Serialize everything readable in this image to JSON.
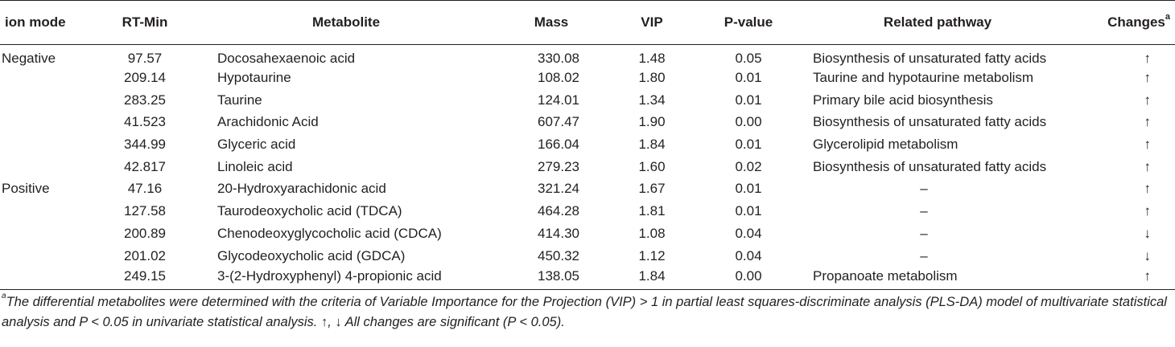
{
  "table": {
    "headers": {
      "ion_mode": "ion mode",
      "rt_min": "RT-Min",
      "metabolite": "Metabolite",
      "mass": "Mass",
      "vip": "VIP",
      "p_value": "P-value",
      "related_pathway": "Related pathway",
      "changes": "Changes",
      "changes_sup": "a"
    },
    "rows": [
      {
        "ion_mode": "Negative",
        "rt_min": "97.57",
        "metabolite": "Docosahexaenoic acid",
        "mass": "330.08",
        "vip": "1.48",
        "p_value": "0.05",
        "pathway": "Biosynthesis of unsaturated fatty acids",
        "change": "↑"
      },
      {
        "ion_mode": "",
        "rt_min": "209.14",
        "metabolite": "Hypotaurine",
        "mass": "108.02",
        "vip": "1.80",
        "p_value": "0.01",
        "pathway": "Taurine and hypotaurine metabolism",
        "change": "↑"
      },
      {
        "ion_mode": "",
        "rt_min": "283.25",
        "metabolite": "Taurine",
        "mass": "124.01",
        "vip": "1.34",
        "p_value": "0.01",
        "pathway": "Primary bile acid biosynthesis",
        "change": "↑"
      },
      {
        "ion_mode": "",
        "rt_min": "41.523",
        "metabolite": "Arachidonic Acid",
        "mass": "607.47",
        "vip": "1.90",
        "p_value": "0.00",
        "pathway": "Biosynthesis of unsaturated fatty acids",
        "change": "↑"
      },
      {
        "ion_mode": "",
        "rt_min": "344.99",
        "metabolite": "Glyceric acid",
        "mass": "166.04",
        "vip": "1.84",
        "p_value": "0.01",
        "pathway": "Glycerolipid metabolism",
        "change": "↑"
      },
      {
        "ion_mode": "",
        "rt_min": "42.817",
        "metabolite": "Linoleic acid",
        "mass": "279.23",
        "vip": "1.60",
        "p_value": "0.02",
        "pathway": "Biosynthesis of unsaturated fatty acids",
        "change": "↑"
      },
      {
        "ion_mode": "Positive",
        "rt_min": "47.16",
        "metabolite": "20-Hydroxyarachidonic acid",
        "mass": "321.24",
        "vip": "1.67",
        "p_value": "0.01",
        "pathway": "–",
        "change": "↑"
      },
      {
        "ion_mode": "",
        "rt_min": "127.58",
        "metabolite": "Taurodeoxycholic acid (TDCA)",
        "mass": "464.28",
        "vip": "1.81",
        "p_value": "0.01",
        "pathway": "–",
        "change": "↑"
      },
      {
        "ion_mode": "",
        "rt_min": "200.89",
        "metabolite": "Chenodeoxyglycocholic acid (CDCA)",
        "mass": "414.30",
        "vip": "1.08",
        "p_value": "0.04",
        "pathway": "–",
        "change": "↓"
      },
      {
        "ion_mode": "",
        "rt_min": "201.02",
        "metabolite": "Glycodeoxycholic acid (GDCA)",
        "mass": "450.32",
        "vip": "1.12",
        "p_value": "0.04",
        "pathway": "–",
        "change": "↓"
      },
      {
        "ion_mode": "",
        "rt_min": "249.15",
        "metabolite": "3-(2-Hydroxyphenyl) 4-propionic acid",
        "mass": "138.05",
        "vip": "1.84",
        "p_value": "0.00",
        "pathway": "Propanoate metabolism",
        "change": "↑"
      }
    ]
  },
  "footnote": {
    "marker": "a",
    "text": "The  differential metabolites were determined with the criteria of Variable Importance for the Projection (VIP) > 1 in partial least squares-discriminate analysis (PLS-DA) model of multivariate statistical analysis and P < 0.05 in univariate statistical analysis. ↑, ↓ All changes are significant (P < 0.05)."
  }
}
